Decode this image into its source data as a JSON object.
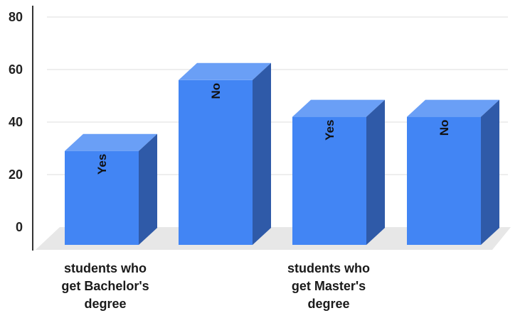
{
  "chart_data": {
    "type": "bar",
    "categories": [
      "students who\nget  Bachelor's\ndegree",
      "students who\nget Master's\ndegree"
    ],
    "series": [
      {
        "category_index": 0,
        "label": "Yes",
        "value": 29
      },
      {
        "category_index": 0,
        "label": "No",
        "value": 56
      },
      {
        "category_index": 1,
        "label": "Yes",
        "value": 42
      },
      {
        "category_index": 1,
        "label": "No",
        "value": 42
      }
    ],
    "ylim": [
      0,
      80
    ],
    "yticks": [
      0,
      20,
      40,
      60,
      80
    ],
    "grid": true,
    "style": "3d",
    "colors": {
      "front": "#4285f4",
      "top": "#6a9ff6",
      "side": "#2f5aa8",
      "floor": "#e7e7e7",
      "grid": "#dcdcdc"
    }
  }
}
